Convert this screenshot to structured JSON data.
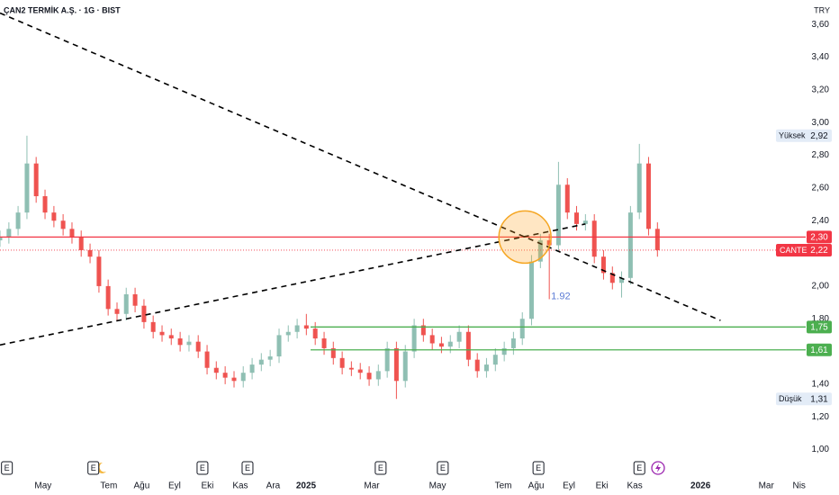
{
  "chart_data": {
    "type": "candlestick",
    "title": "ÇAN2 TERMİK A.Ş. · 1G · BIST",
    "currency": "TRY",
    "xlim": [
      2.69,
      27.2
    ],
    "ylim": [
      0.86,
      3.75
    ],
    "xticks": [
      {
        "value": 4,
        "label": "May"
      },
      {
        "value": 6,
        "label": "Tem"
      },
      {
        "value": 7,
        "label": "Ağu"
      },
      {
        "value": 8,
        "label": "Eyl"
      },
      {
        "value": 9,
        "label": "Eki"
      },
      {
        "value": 10,
        "label": "Kas"
      },
      {
        "value": 11,
        "label": "Ara"
      },
      {
        "value": 12,
        "label": "2025"
      },
      {
        "value": 14,
        "label": "Mar"
      },
      {
        "value": 16,
        "label": "May"
      },
      {
        "value": 18,
        "label": "Tem"
      },
      {
        "value": 19,
        "label": "Ağu"
      },
      {
        "value": 20,
        "label": "Eyl"
      },
      {
        "value": 21,
        "label": "Eki"
      },
      {
        "value": 22,
        "label": "Kas"
      },
      {
        "value": 24,
        "label": "2026"
      },
      {
        "value": 26,
        "label": "Mar"
      },
      {
        "value": 27,
        "label": "Nis"
      }
    ],
    "yticks": [
      {
        "value": 1.0,
        "label": "1,00"
      },
      {
        "value": 1.2,
        "label": "1,20"
      },
      {
        "value": 1.4,
        "label": "1,40"
      },
      {
        "value": 1.8,
        "label": "1,80"
      },
      {
        "value": 2.0,
        "label": "2,00"
      },
      {
        "value": 2.4,
        "label": "2,40"
      },
      {
        "value": 2.6,
        "label": "2,60"
      },
      {
        "value": 2.8,
        "label": "2,80"
      },
      {
        "value": 3.0,
        "label": "3,00"
      },
      {
        "value": 3.2,
        "label": "3,20"
      },
      {
        "value": 3.4,
        "label": "3,40"
      },
      {
        "value": 3.6,
        "label": "3,60"
      }
    ],
    "up_color": "#8fbfb3",
    "down_color": "#ef5350",
    "candles": {
      "x": [
        2.69,
        2.96,
        3.24,
        3.51,
        3.79,
        4.06,
        4.33,
        4.61,
        4.88,
        5.16,
        5.43,
        5.7,
        5.98,
        6.25,
        6.53,
        6.8,
        7.07,
        7.35,
        7.62,
        7.9,
        8.17,
        8.44,
        8.72,
        8.99,
        9.27,
        9.54,
        9.81,
        10.09,
        10.36,
        10.64,
        10.91,
        11.18,
        11.46,
        11.73,
        12.01,
        12.28,
        12.55,
        12.83,
        13.1,
        13.38,
        13.65,
        13.92,
        14.2,
        14.47,
        14.75,
        15.02,
        15.29,
        15.57,
        15.84,
        16.12,
        16.39,
        16.66,
        16.94,
        17.21,
        17.49,
        17.76,
        18.03,
        18.31,
        18.58,
        18.86,
        19.13,
        19.4,
        19.68,
        19.95,
        20.23,
        20.5,
        20.77,
        21.05,
        21.32,
        21.6,
        21.87,
        22.14,
        22.42,
        22.69
      ],
      "open": [
        2.28,
        2.3,
        2.35,
        2.45,
        2.75,
        2.55,
        2.45,
        2.4,
        2.35,
        2.3,
        2.22,
        2.18,
        2.0,
        1.86,
        1.83,
        1.95,
        1.88,
        1.78,
        1.72,
        1.7,
        1.68,
        1.64,
        1.66,
        1.6,
        1.5,
        1.47,
        1.44,
        1.42,
        1.47,
        1.52,
        1.55,
        1.57,
        1.7,
        1.72,
        1.76,
        1.74,
        1.68,
        1.62,
        1.56,
        1.5,
        1.49,
        1.47,
        1.43,
        1.48,
        1.62,
        1.42,
        1.6,
        1.76,
        1.7,
        1.65,
        1.63,
        1.66,
        1.72,
        1.55,
        1.48,
        1.52,
        1.58,
        1.62,
        1.68,
        1.8,
        2.15,
        2.28,
        2.25,
        2.62,
        2.45,
        2.38,
        2.4,
        2.18,
        2.08,
        2.02,
        2.05,
        2.45,
        2.75,
        2.35
      ],
      "high": [
        2.34,
        2.39,
        2.49,
        2.92,
        2.79,
        2.59,
        2.49,
        2.44,
        2.39,
        2.34,
        2.26,
        2.22,
        2.04,
        1.9,
        1.99,
        1.99,
        1.92,
        1.82,
        1.76,
        1.74,
        1.72,
        1.7,
        1.7,
        1.64,
        1.54,
        1.51,
        1.48,
        1.51,
        1.56,
        1.59,
        1.61,
        1.74,
        1.76,
        1.8,
        1.83,
        1.78,
        1.72,
        1.66,
        1.6,
        1.54,
        1.53,
        1.51,
        1.52,
        1.66,
        1.66,
        1.64,
        1.8,
        1.8,
        1.74,
        1.69,
        1.7,
        1.76,
        1.76,
        1.59,
        1.56,
        1.62,
        1.66,
        1.72,
        1.84,
        2.19,
        2.32,
        2.32,
        2.76,
        2.66,
        2.49,
        2.44,
        2.44,
        2.22,
        2.12,
        2.09,
        2.49,
        2.87,
        2.79,
        2.39
      ],
      "low": [
        2.24,
        2.26,
        2.31,
        2.41,
        2.51,
        2.41,
        2.36,
        2.31,
        2.26,
        2.18,
        2.14,
        1.96,
        1.82,
        1.79,
        1.79,
        1.84,
        1.74,
        1.68,
        1.66,
        1.64,
        1.6,
        1.6,
        1.56,
        1.46,
        1.43,
        1.4,
        1.38,
        1.38,
        1.43,
        1.48,
        1.51,
        1.53,
        1.66,
        1.68,
        1.7,
        1.64,
        1.58,
        1.52,
        1.46,
        1.45,
        1.43,
        1.39,
        1.39,
        1.44,
        1.31,
        1.38,
        1.56,
        1.66,
        1.61,
        1.59,
        1.59,
        1.62,
        1.51,
        1.44,
        1.44,
        1.48,
        1.54,
        1.58,
        1.64,
        1.76,
        2.11,
        1.92,
        2.21,
        2.41,
        2.34,
        2.34,
        2.14,
        2.04,
        1.98,
        1.93,
        2.01,
        2.41,
        2.31,
        2.18
      ],
      "close": [
        2.3,
        2.35,
        2.45,
        2.75,
        2.55,
        2.45,
        2.4,
        2.35,
        2.3,
        2.22,
        2.18,
        2.0,
        1.86,
        1.83,
        1.95,
        1.88,
        1.78,
        1.72,
        1.7,
        1.68,
        1.64,
        1.66,
        1.6,
        1.5,
        1.47,
        1.44,
        1.42,
        1.47,
        1.52,
        1.55,
        1.57,
        1.7,
        1.72,
        1.76,
        1.74,
        1.68,
        1.62,
        1.56,
        1.5,
        1.49,
        1.47,
        1.43,
        1.48,
        1.62,
        1.42,
        1.6,
        1.76,
        1.7,
        1.65,
        1.63,
        1.66,
        1.72,
        1.55,
        1.48,
        1.52,
        1.58,
        1.62,
        1.68,
        1.8,
        2.15,
        2.28,
        2.25,
        2.62,
        2.45,
        2.38,
        2.4,
        2.18,
        2.08,
        2.02,
        2.05,
        2.45,
        2.75,
        2.35,
        2.22
      ]
    },
    "levels": [
      {
        "value": 2.3,
        "label": "2,30",
        "color": "#f23645"
      },
      {
        "value": 1.75,
        "label": "1,75",
        "color": "#4caf50"
      },
      {
        "value": 1.61,
        "label": "1,61",
        "color": "#4caf50"
      }
    ],
    "last_price": {
      "name": "CANTE",
      "value": 2.22,
      "label": "2,22",
      "color": "#f23645"
    },
    "extremes": [
      {
        "name": "Yüksek",
        "value": 2.92,
        "label": "2,92"
      },
      {
        "name": "Düşük",
        "value": 1.31,
        "label": "1,31"
      }
    ],
    "trendlines": [
      {
        "x": [
          2.69,
          24.61
        ],
        "y": [
          3.67,
          1.79
        ]
      },
      {
        "x": [
          2.69,
          20.5
        ],
        "y": [
          1.64,
          2.38
        ]
      }
    ],
    "highlight": {
      "x": 18.66,
      "y": 2.3
    },
    "events": [
      {
        "x": 2.9,
        "label": "E"
      },
      {
        "x": 5.53,
        "label": "E"
      },
      {
        "x": 8.85,
        "label": "E"
      },
      {
        "x": 10.22,
        "label": "E"
      },
      {
        "x": 14.27,
        "label": "E"
      },
      {
        "x": 16.16,
        "label": "E"
      },
      {
        "x": 19.07,
        "label": "E"
      },
      {
        "x": 22.14,
        "label": "E"
      }
    ]
  }
}
